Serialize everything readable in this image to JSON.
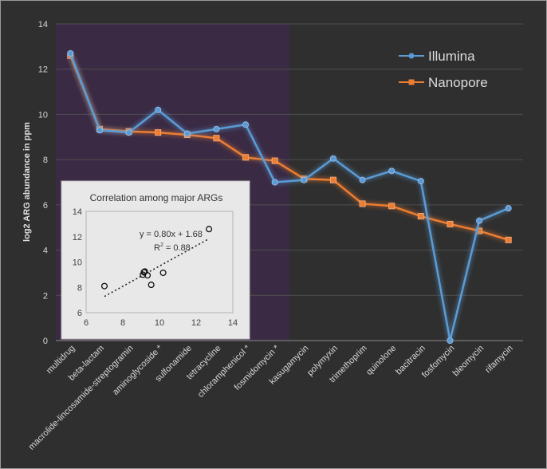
{
  "chart_data": [
    {
      "type": "line",
      "title": "",
      "xlabel": "",
      "ylabel": "log2 ARG abundance in ppm",
      "ylim": [
        0,
        14
      ],
      "yticks": [
        0,
        2,
        4,
        6,
        8,
        10,
        12,
        14
      ],
      "categories": [
        "multidrug",
        "beta-lactam",
        "macrolide-lincosamide-streptogramin",
        "aminoglycoside *",
        "sulfonamide",
        "tetracycline",
        "chloramphenicol *",
        "fosmidomycin *",
        "kasugamycin",
        "polymyxin",
        "trimethoprim",
        "quinolone",
        "bacitracin",
        "fosfomycin",
        "bleomycin",
        "rifamycin"
      ],
      "highlight_range": [
        "multidrug",
        "fosmidomycin *"
      ],
      "legend_position": "top-right",
      "series": [
        {
          "name": "Illumina",
          "color": "#5b9bd5",
          "marker": "circle",
          "values": [
            12.7,
            9.3,
            9.2,
            10.2,
            9.15,
            9.35,
            9.55,
            7.0,
            7.1,
            8.05,
            7.1,
            7.5,
            7.05,
            0.0,
            5.3,
            5.85
          ]
        },
        {
          "name": "Nanopore",
          "color": "#ed7d31",
          "marker": "square",
          "values": [
            12.6,
            9.35,
            9.25,
            9.2,
            9.1,
            8.95,
            8.1,
            7.95,
            7.15,
            7.1,
            6.05,
            5.95,
            5.5,
            5.15,
            4.85,
            4.45
          ]
        }
      ]
    },
    {
      "type": "scatter",
      "title": "Correlation among major ARGs",
      "xlim": [
        6,
        14
      ],
      "ylim": [
        6,
        14
      ],
      "xticks": [
        6,
        8,
        10,
        12,
        14
      ],
      "yticks": [
        6,
        8,
        10,
        12,
        14
      ],
      "points": [
        {
          "x": 7.0,
          "y": 8.1
        },
        {
          "x": 9.1,
          "y": 9.0
        },
        {
          "x": 9.15,
          "y": 9.2
        },
        {
          "x": 9.2,
          "y": 9.25
        },
        {
          "x": 9.35,
          "y": 8.95
        },
        {
          "x": 9.55,
          "y": 8.2
        },
        {
          "x": 10.2,
          "y": 9.15
        },
        {
          "x": 12.7,
          "y": 12.6
        }
      ],
      "trendline": {
        "slope": 0.8,
        "intercept": 1.68,
        "x_range": [
          7.0,
          12.7
        ]
      },
      "equation": "y = 0.80x + 1.68",
      "r2_label": "R",
      "r2_sup": "2",
      "r2_value": " = 0.88"
    }
  ]
}
